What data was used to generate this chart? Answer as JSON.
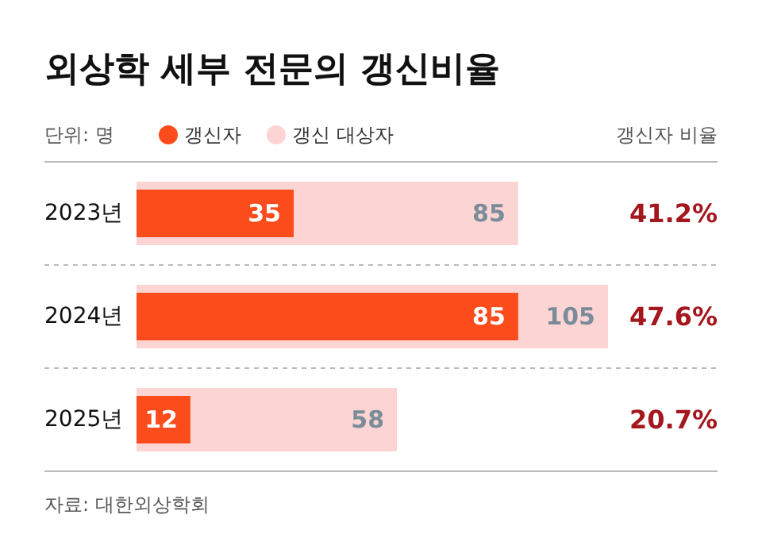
{
  "chart_data": {
    "type": "bar",
    "orientation": "horizontal",
    "title": "외상학 세부 전문의 갱신비율",
    "categories": [
      "2023년",
      "2024년",
      "2025년"
    ],
    "series": [
      {
        "name": "갱신자",
        "color": "#fc4c1c",
        "values": [
          35,
          85,
          12
        ]
      },
      {
        "name": "갱신 대상자",
        "color": "#fdd4d4",
        "values": [
          85,
          105,
          58
        ]
      }
    ],
    "xlim": [
      0,
      105
    ],
    "data_labels": true,
    "legend": "top left",
    "tick_labels": false,
    "grid": false,
    "annotations": [
      "단위: 명",
      "갱신자 비율",
      "41.2%",
      "47.6%",
      "20.7%",
      "자료: 대한외상학회"
    ]
  }
}
